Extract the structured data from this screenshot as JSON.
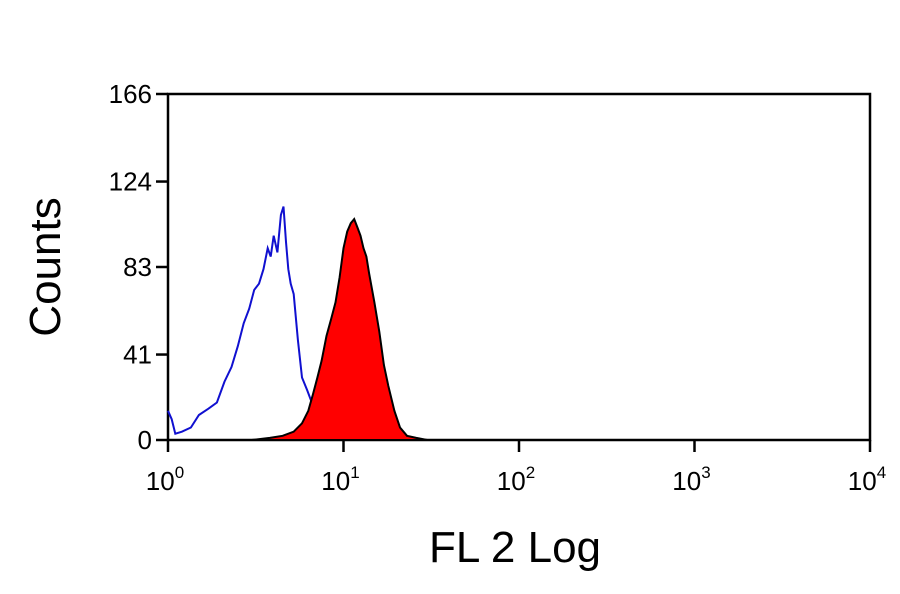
{
  "chart_data": {
    "type": "area",
    "xlabel": "FL 2 Log",
    "ylabel": "Counts",
    "x_scale": "log",
    "xlim": [
      1,
      10000
    ],
    "ylim": [
      0,
      166
    ],
    "x_ticks": [
      {
        "value": 1,
        "base": "10",
        "exp": "0"
      },
      {
        "value": 10,
        "base": "10",
        "exp": "1"
      },
      {
        "value": 100,
        "base": "10",
        "exp": "2"
      },
      {
        "value": 1000,
        "base": "10",
        "exp": "3"
      },
      {
        "value": 10000,
        "base": "10",
        "exp": "4"
      }
    ],
    "y_ticks": [
      0,
      41,
      83,
      124,
      166
    ],
    "grid": false,
    "legend": "none",
    "series": [
      {
        "style": "outline",
        "color": "#1010d0",
        "x": [
          1.0,
          1.05,
          1.1,
          1.2,
          1.35,
          1.5,
          1.7,
          1.9,
          2.1,
          2.3,
          2.5,
          2.7,
          2.9,
          3.1,
          3.3,
          3.5,
          3.7,
          3.85,
          4.0,
          4.2,
          4.4,
          4.55,
          4.7,
          4.85,
          5.0,
          5.2,
          5.5,
          5.8,
          6.2,
          6.6,
          7.0,
          7.5,
          8.0,
          8.6,
          9.2,
          10.0,
          11.0,
          12.0,
          14.0,
          17.0,
          20.0
        ],
        "y": [
          14,
          10,
          3,
          4,
          6,
          12,
          15,
          18,
          28,
          35,
          45,
          56,
          63,
          72,
          75,
          82,
          92,
          88,
          98,
          90,
          108,
          112,
          95,
          82,
          75,
          70,
          48,
          30,
          24,
          18,
          14,
          8,
          5,
          3,
          2,
          2,
          1,
          1,
          0,
          0,
          0
        ]
      },
      {
        "style": "filled",
        "color": "#ff0000",
        "outline": "#000000",
        "x": [
          3.0,
          3.8,
          4.5,
          5.2,
          5.8,
          6.3,
          6.7,
          7.1,
          7.5,
          8.0,
          8.5,
          9.0,
          9.5,
          10.0,
          10.5,
          11.0,
          11.5,
          12.0,
          12.5,
          13.0,
          13.5,
          14.0,
          15.0,
          16.0,
          17.0,
          18.0,
          19.5,
          21.0,
          23.0,
          26.0,
          30.0
        ],
        "y": [
          0,
          1,
          2,
          4,
          8,
          14,
          22,
          30,
          38,
          50,
          58,
          66,
          78,
          92,
          100,
          104,
          106,
          102,
          98,
          92,
          88,
          80,
          66,
          52,
          36,
          26,
          14,
          6,
          2,
          1,
          0
        ]
      }
    ]
  }
}
